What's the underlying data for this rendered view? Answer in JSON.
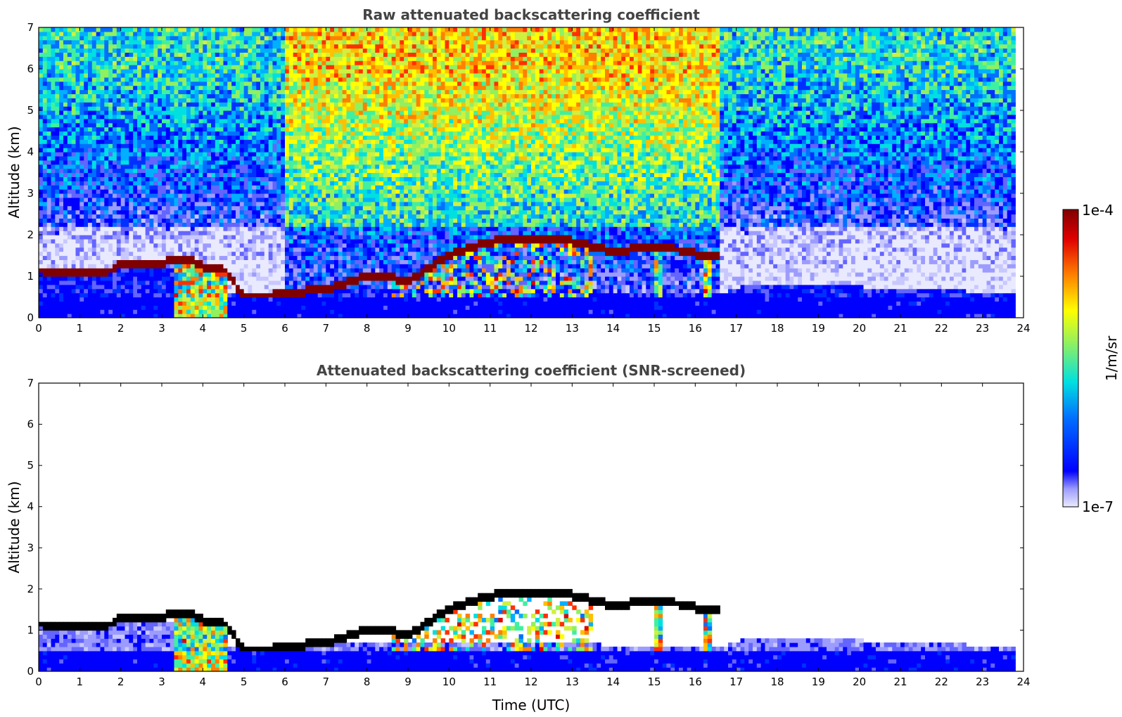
{
  "chart_data": [
    {
      "type": "heatmap",
      "title": "Raw attenuated backscattering coefficient",
      "xlabel": "",
      "ylabel": "Altitude (km)",
      "xlim": [
        0,
        24
      ],
      "ylim": [
        0,
        7
      ],
      "x_ticks": [
        "0",
        "1",
        "2",
        "3",
        "4",
        "5",
        "6",
        "7",
        "8",
        "9",
        "10",
        "11",
        "12",
        "13",
        "14",
        "15",
        "16",
        "17",
        "18",
        "19",
        "20",
        "21",
        "22",
        "23",
        "24"
      ],
      "y_ticks": [
        "0",
        "1",
        "2",
        "3",
        "4",
        "5",
        "6",
        "7"
      ],
      "data_x_extent": [
        0,
        23.8
      ],
      "cloud_base_layer": [
        {
          "t": 0.0,
          "alt": 1.1
        },
        {
          "t": 1.0,
          "alt": 1.05
        },
        {
          "t": 1.7,
          "alt": 1.1
        },
        {
          "t": 2.0,
          "alt": 1.25
        },
        {
          "t": 2.5,
          "alt": 1.3
        },
        {
          "t": 3.0,
          "alt": 1.3
        },
        {
          "t": 3.5,
          "alt": 1.4
        },
        {
          "t": 4.0,
          "alt": 1.2
        },
        {
          "t": 4.5,
          "alt": 1.1
        },
        {
          "t": 5.0,
          "alt": 0.4
        },
        {
          "t": 6.0,
          "alt": 0.55
        },
        {
          "t": 7.0,
          "alt": 0.65
        },
        {
          "t": 8.0,
          "alt": 1.0
        },
        {
          "t": 9.0,
          "alt": 0.85
        },
        {
          "t": 10.0,
          "alt": 1.5
        },
        {
          "t": 11.0,
          "alt": 1.8
        },
        {
          "t": 12.0,
          "alt": 1.85
        },
        {
          "t": 13.0,
          "alt": 1.8
        },
        {
          "t": 14.0,
          "alt": 1.55
        },
        {
          "t": 15.0,
          "alt": 1.7
        },
        {
          "t": 16.0,
          "alt": 1.5
        }
      ],
      "noise_level_aloft": "high from 6 to 16.5 UTC, lower elsewhere"
    },
    {
      "type": "heatmap",
      "title": "Attenuated backscattering coefficient (SNR-screened)",
      "xlabel": "Time (UTC)",
      "ylabel": "Altitude (km)",
      "xlim": [
        0,
        24
      ],
      "ylim": [
        0,
        7
      ],
      "x_ticks": [
        "0",
        "1",
        "2",
        "3",
        "4",
        "5",
        "6",
        "7",
        "8",
        "9",
        "10",
        "11",
        "12",
        "13",
        "14",
        "15",
        "16",
        "17",
        "18",
        "19",
        "20",
        "21",
        "22",
        "23",
        "24"
      ],
      "y_ticks": [
        "0",
        "1",
        "2",
        "3",
        "4",
        "5",
        "6",
        "7"
      ],
      "data_x_extent": [
        0,
        23.8
      ],
      "boundary_layer_top": [
        {
          "t": 0.0,
          "alt": 1.2
        },
        {
          "t": 3.0,
          "alt": 1.2
        },
        {
          "t": 5.0,
          "alt": 0.45
        },
        {
          "t": 8.0,
          "alt": 0.7
        },
        {
          "t": 16.5,
          "alt": 0.55
        },
        {
          "t": 17.5,
          "alt": 0.8
        },
        {
          "t": 23.8,
          "alt": 0.55
        }
      ]
    }
  ],
  "colorbar": {
    "max_label": "1e-4",
    "min_label": "1e-7",
    "unit_label": "1/m/sr",
    "scale": "log",
    "colors": [
      "#eaeaff",
      "#c8c8ff",
      "#9c9cff",
      "#6464ff",
      "#0000ff",
      "#0030ff",
      "#0070ff",
      "#00b0ff",
      "#00e0e0",
      "#40f0a0",
      "#90f060",
      "#d0f040",
      "#ffff00",
      "#ffc000",
      "#ff8000",
      "#ff3000",
      "#e00000",
      "#7f0000"
    ]
  }
}
